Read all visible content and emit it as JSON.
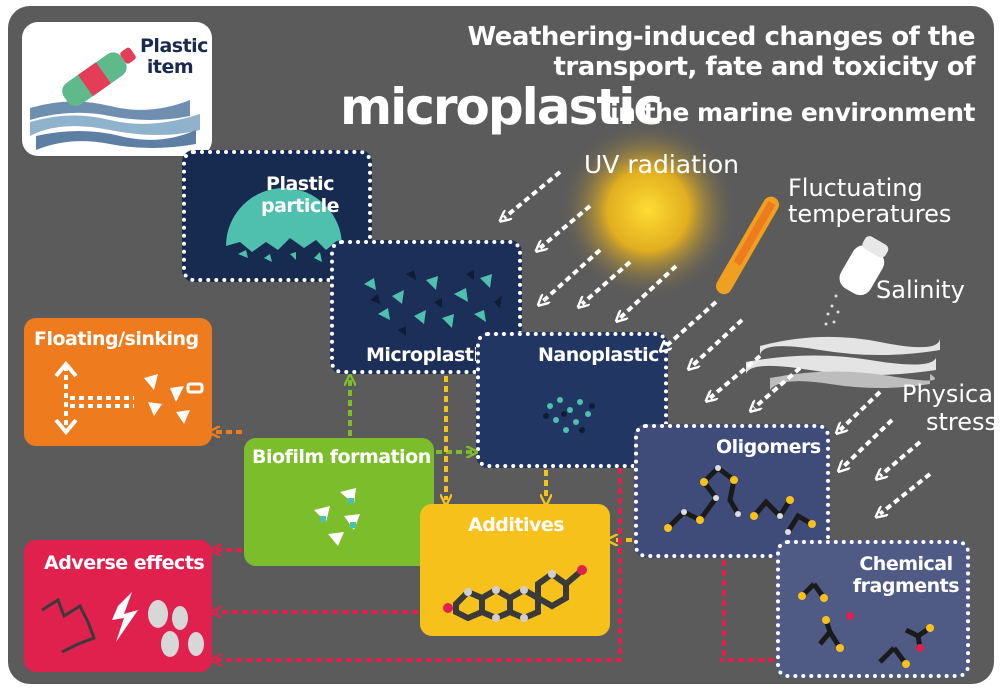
{
  "title": {
    "line1": "Weathering-induced changes of the",
    "line2": "transport, fate and toxicity of",
    "big": "microplastic",
    "tail": "in the marine environment"
  },
  "plastic_item": "Plastic item",
  "stages": {
    "plastic_particle": "Plastic particle",
    "microplastic": "Microplastic",
    "nanoplastic": "Nanoplastic",
    "oligomers": "Oligomers",
    "chemical_fragments": "Chemical fragments"
  },
  "effects": {
    "floating_sinking": "Floating/sinking",
    "biofilm_formation": "Biofilm formation",
    "additives": "Additives",
    "adverse_effects": "Adverse effects"
  },
  "stressors": {
    "uv": "UV radiation",
    "temp_line1": "Fluctuating",
    "temp_line2": "temperatures",
    "salinity": "Salinity",
    "physical_line1": "Physical",
    "physical_line2": "stress"
  },
  "colors": {
    "background": "#5b5b5b",
    "navy": "#172a4f",
    "navy_light": "#27396a",
    "slate": "#4f5b85",
    "orange": "#ee7b1d",
    "green": "#7cbd2c",
    "yellow": "#f6c11a",
    "red": "#e0204d",
    "teal": "#4fc0ae"
  }
}
